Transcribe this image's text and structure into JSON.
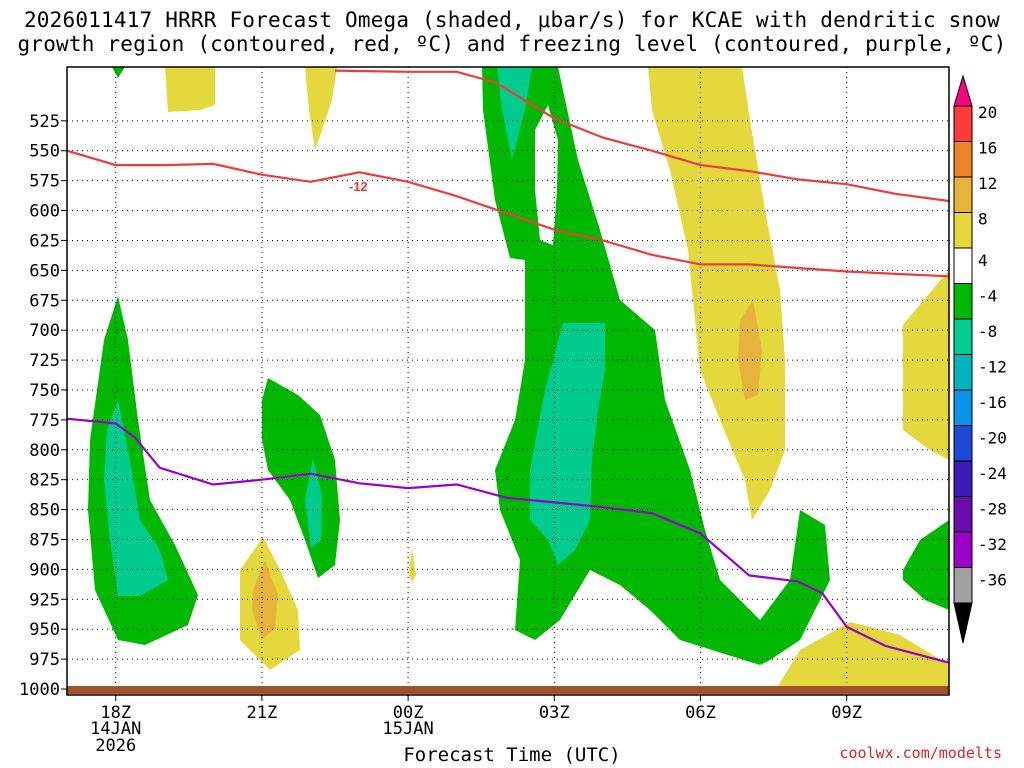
{
  "title_line1": "2026011417 HRRR Forecast Omega (shaded, μbar/s) for KCAE with dendritic snow",
  "title_line2": "growth region (contoured, red, ºC) and freezing level (contoured, purple, ºC)",
  "credit": "coolwx.com/modelts",
  "chart_data": {
    "type": "area",
    "xlabel": "Forecast Time (UTC)",
    "ylabel": "",
    "x_range_hours": [
      -1.0,
      17.1
    ],
    "y_range_hPa": [
      1005,
      480
    ],
    "y_ticks": [
      525,
      550,
      575,
      600,
      625,
      650,
      675,
      700,
      725,
      750,
      775,
      800,
      825,
      850,
      875,
      900,
      925,
      950,
      975,
      1000
    ],
    "x_ticks": [
      {
        "hour": 0,
        "label": "18Z",
        "sub1": "14JAN",
        "sub2": "2026"
      },
      {
        "hour": 3,
        "label": "21Z",
        "sub1": "",
        "sub2": ""
      },
      {
        "hour": 6,
        "label": "00Z",
        "sub1": "15JAN",
        "sub2": ""
      },
      {
        "hour": 9,
        "label": "03Z",
        "sub1": "",
        "sub2": ""
      },
      {
        "hour": 12,
        "label": "06Z",
        "sub1": "",
        "sub2": ""
      },
      {
        "hour": 15,
        "label": "09Z",
        "sub1": "",
        "sub2": ""
      }
    ],
    "grid": true,
    "contour_label": "-12",
    "colorbar": {
      "labels": [
        "20",
        "16",
        "12",
        "8",
        "4",
        "-4",
        "-8",
        "-12",
        "-16",
        "-20",
        "-24",
        "-28",
        "-32",
        "-36"
      ],
      "colors": [
        "#ff3b3b",
        "#ee8427",
        "#e7b33a",
        "#e5d83c",
        "#ffffff",
        "#00b800",
        "#00cc8e",
        "#00b4bf",
        "#0a93e8",
        "#1f47d8",
        "#3a1db8",
        "#6a0dad",
        "#9d00c6",
        "#a0a0a0"
      ],
      "top_color": "#ff007f",
      "bottom_color": "#000000"
    },
    "series": [
      {
        "name": "dendritic-top-contour",
        "color": "#ee3c3c",
        "points": [
          [
            -1,
            550
          ],
          [
            0,
            562
          ],
          [
            1,
            562
          ],
          [
            2,
            561
          ],
          [
            3,
            570
          ],
          [
            4,
            576
          ],
          [
            5,
            568
          ],
          [
            6,
            576
          ],
          [
            7,
            588
          ],
          [
            8,
            602
          ],
          [
            9,
            616
          ],
          [
            10,
            625
          ],
          [
            11,
            637
          ],
          [
            12,
            645
          ],
          [
            13,
            645
          ],
          [
            14,
            648
          ],
          [
            15,
            651
          ],
          [
            16,
            653
          ],
          [
            17.1,
            655
          ]
        ]
      },
      {
        "name": "dendritic-bottom-contour",
        "color": "#ee3c3c",
        "points": [
          [
            4.5,
            483
          ],
          [
            6,
            484
          ],
          [
            7,
            484
          ],
          [
            7.8,
            493
          ],
          [
            9,
            523
          ],
          [
            10,
            539
          ],
          [
            11,
            550
          ],
          [
            12,
            562
          ],
          [
            13,
            567
          ],
          [
            14,
            574
          ],
          [
            15,
            578
          ],
          [
            16,
            586
          ],
          [
            17.1,
            592
          ]
        ]
      },
      {
        "name": "freezing-level-contour",
        "color": "#9900cc",
        "points": [
          [
            -1,
            774
          ],
          [
            0,
            778
          ],
          [
            0.4,
            790
          ],
          [
            0.9,
            815
          ],
          [
            2,
            829
          ],
          [
            3,
            825
          ],
          [
            4,
            820
          ],
          [
            5,
            828
          ],
          [
            6,
            832
          ],
          [
            7,
            829
          ],
          [
            8,
            840
          ],
          [
            9,
            844
          ],
          [
            10,
            848
          ],
          [
            11,
            853
          ],
          [
            12,
            870
          ],
          [
            13,
            905
          ],
          [
            14,
            910
          ],
          [
            14.5,
            920
          ],
          [
            15,
            948
          ],
          [
            15.8,
            964
          ],
          [
            17.1,
            978
          ]
        ]
      },
      {
        "name": "omega-shaded-regions",
        "color": "#00b800",
        "points": []
      }
    ]
  }
}
